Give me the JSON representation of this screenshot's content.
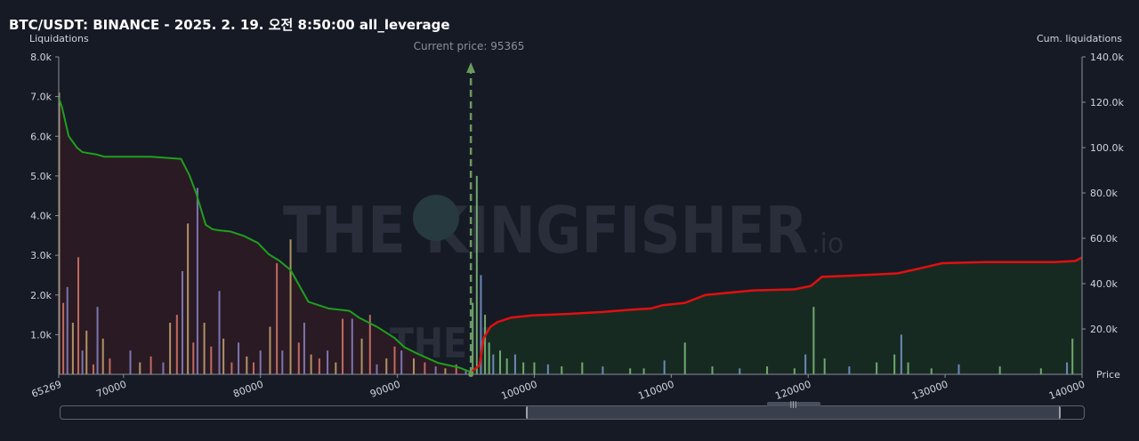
{
  "header": {
    "title": "BTC/USDT: BINANCE - 2025. 2. 19. 오전 8:50:00 all_leverage"
  },
  "watermark": {
    "brand": "THE KINGFISHER",
    "suffix": ".io"
  },
  "colors": {
    "background": "#161a25",
    "short_line": "#1ea01e",
    "long_line": "#e01010",
    "short_fill": "#2a1a23",
    "long_fill": "#172a22",
    "current_price": "#6a9a5e",
    "bar_left_a": "#c9a871",
    "bar_left_b": "#d87a6a",
    "bar_left_c": "#8a86c8",
    "bar_right_a": "#7fc07a",
    "bar_right_b": "#7a9ad0"
  },
  "chart_data": {
    "type": "bar",
    "xlabel": "Price",
    "ylabel_left": "Liquidations",
    "ylabel_right": "Cum. liquidations",
    "current_price_label": "Current price: 95365",
    "current_price": 95365,
    "xlim": [
      65269,
      140000
    ],
    "ylim_left": [
      0,
      8000
    ],
    "ylim_right": [
      0,
      140000
    ],
    "x_tick_labels": [
      "65269",
      "70000",
      "80000",
      "90000",
      "100000",
      "110000",
      "120000",
      "130000",
      "140000"
    ],
    "x_ticks": [
      65269,
      70000,
      80000,
      90000,
      100000,
      110000,
      120000,
      130000,
      140000
    ],
    "y_left_tick_labels": [
      "1.0k",
      "2.0k",
      "3.0k",
      "4.0k",
      "5.0k",
      "6.0k",
      "7.0k",
      "8.0k"
    ],
    "y_left_ticks": [
      1000,
      2000,
      3000,
      4000,
      5000,
      6000,
      7000,
      8000
    ],
    "y_right_tick_labels": [
      "20.0k",
      "40.0k",
      "60.0k",
      "80.0k",
      "100.0k",
      "120.0k",
      "140.0k"
    ],
    "y_right_ticks": [
      20000,
      40000,
      60000,
      80000,
      100000,
      120000,
      140000
    ],
    "cum_short_side": {
      "x": [
        65269,
        65500,
        66000,
        66600,
        67000,
        68000,
        68600,
        69500,
        70300,
        72000,
        74200,
        74800,
        75300,
        76000,
        76500,
        77000,
        77800,
        78800,
        79800,
        80600,
        81400,
        82200,
        83500,
        85000,
        86500,
        87200,
        88500,
        89800,
        90500,
        91500,
        93000,
        94500,
        95365
      ],
      "y": [
        122000,
        118000,
        105000,
        100000,
        98000,
        97000,
        96000,
        96000,
        96000,
        96000,
        95000,
        88000,
        80000,
        66000,
        64000,
        63500,
        63000,
        61000,
        58000,
        53000,
        50000,
        46000,
        32000,
        29000,
        28000,
        25000,
        21000,
        16000,
        12000,
        9000,
        5000,
        3000,
        1000
      ]
    },
    "cum_long_side": {
      "x": [
        95365,
        96000,
        96300,
        96800,
        97300,
        98300,
        99800,
        102000,
        105000,
        107000,
        108500,
        109400,
        111000,
        112500,
        116000,
        119000,
        120200,
        121000,
        123000,
        126500,
        128000,
        129800,
        133000,
        138000,
        139500,
        140000
      ],
      "y": [
        1000,
        4000,
        16000,
        21000,
        23000,
        25000,
        26000,
        26500,
        27500,
        28500,
        29000,
        30500,
        31500,
        35000,
        37000,
        37500,
        39000,
        43000,
        43500,
        44500,
        46500,
        49000,
        49500,
        49500,
        50000,
        51500
      ]
    },
    "bars_left": {
      "x": [
        65300,
        65600,
        65900,
        66300,
        66700,
        67000,
        67300,
        67800,
        68100,
        68500,
        69000,
        70500,
        71200,
        72000,
        72900,
        73400,
        73900,
        74300,
        74700,
        75100,
        75400,
        75900,
        76400,
        77000,
        77300,
        77900,
        78400,
        79000,
        79500,
        80000,
        80700,
        81200,
        81600,
        82200,
        82800,
        83200,
        83700,
        84300,
        84900,
        85500,
        86000,
        86700,
        87400,
        88000,
        88500,
        89200,
        89800,
        90300,
        91200,
        92000,
        92800,
        93500,
        94300,
        95000
      ],
      "y": [
        7100,
        1800,
        2200,
        1300,
        2950,
        600,
        1100,
        250,
        1700,
        900,
        400,
        600,
        300,
        450,
        300,
        1300,
        1500,
        2600,
        3800,
        800,
        4700,
        1300,
        700,
        2100,
        900,
        300,
        800,
        450,
        300,
        600,
        1200,
        2800,
        600,
        3400,
        800,
        1300,
        500,
        400,
        600,
        300,
        1400,
        1400,
        900,
        1500,
        250,
        400,
        700,
        600,
        400,
        300,
        200,
        150,
        250,
        100
      ]
    },
    "bars_right": {
      "x": [
        95500,
        95800,
        96100,
        96400,
        96700,
        97000,
        97500,
        98000,
        98600,
        99200,
        100000,
        101000,
        102000,
        103500,
        105000,
        107000,
        108000,
        109500,
        111000,
        113000,
        115000,
        117000,
        119000,
        119800,
        120400,
        121200,
        123000,
        125000,
        126300,
        126800,
        127300,
        129000,
        131000,
        134000,
        137000,
        138900,
        139300
      ],
      "y": [
        1800,
        5000,
        2500,
        1500,
        800,
        500,
        600,
        400,
        500,
        300,
        300,
        250,
        200,
        300,
        200,
        150,
        150,
        350,
        800,
        200,
        150,
        200,
        150,
        500,
        1700,
        400,
        200,
        300,
        500,
        1000,
        300,
        150,
        250,
        200,
        150,
        300,
        900
      ]
    }
  }
}
